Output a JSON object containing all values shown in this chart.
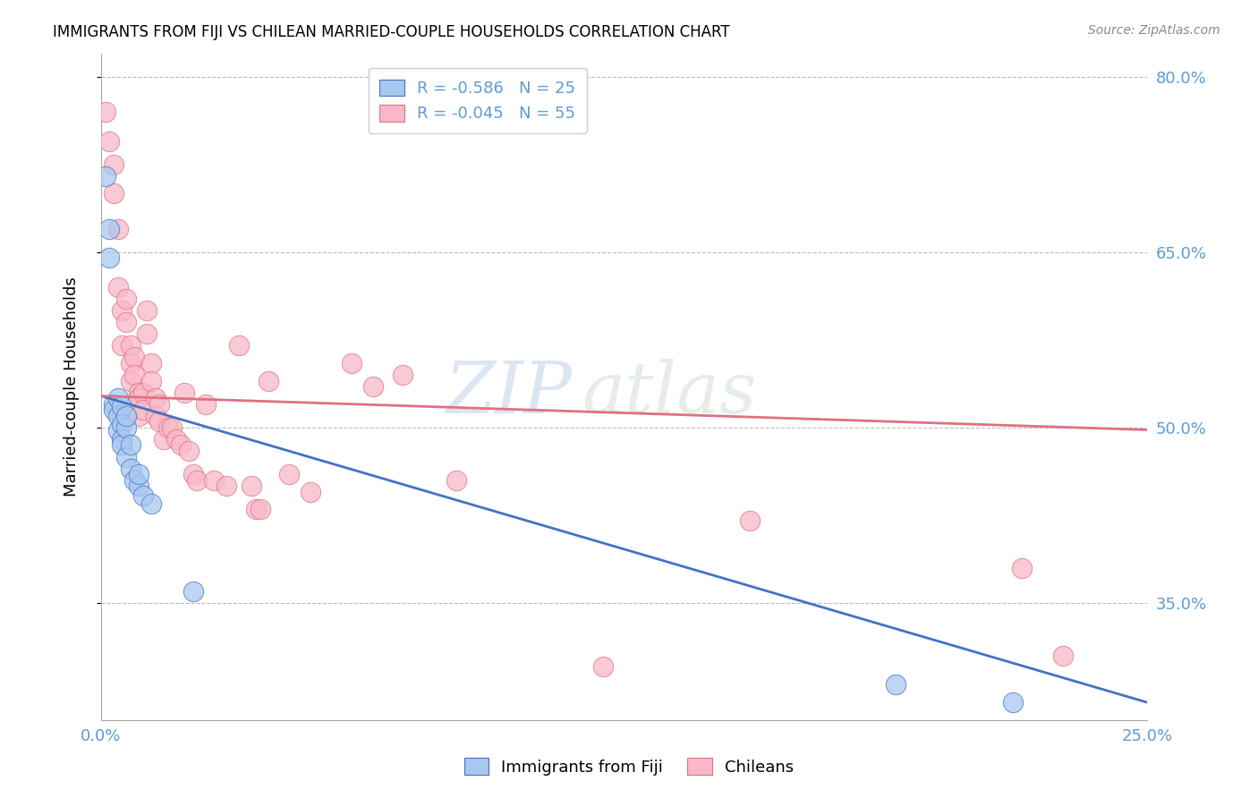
{
  "title": "IMMIGRANTS FROM FIJI VS CHILEAN MARRIED-COUPLE HOUSEHOLDS CORRELATION CHART",
  "source": "Source: ZipAtlas.com",
  "ylabel": "Married-couple Households",
  "xlim": [
    0.0,
    0.25
  ],
  "ylim": [
    0.25,
    0.82
  ],
  "yticks": [
    0.35,
    0.5,
    0.65,
    0.8
  ],
  "ytick_labels": [
    "35.0%",
    "50.0%",
    "65.0%",
    "80.0%"
  ],
  "xticks": [
    0.0,
    0.05,
    0.1,
    0.15,
    0.2,
    0.25
  ],
  "xtick_labels": [
    "0.0%",
    "",
    "",
    "",
    "",
    "25.0%"
  ],
  "fiji_R": "-0.586",
  "fiji_N": "25",
  "chilean_R": "-0.045",
  "chilean_N": "55",
  "fiji_color": "#A8C8F0",
  "chilean_color": "#F8B8C8",
  "fiji_line_color": "#4472C4",
  "chilean_line_color": "#E07080",
  "fiji_scatter": [
    [
      0.001,
      0.715
    ],
    [
      0.002,
      0.67
    ],
    [
      0.002,
      0.645
    ],
    [
      0.003,
      0.52
    ],
    [
      0.003,
      0.515
    ],
    [
      0.004,
      0.525
    ],
    [
      0.004,
      0.51
    ],
    [
      0.004,
      0.498
    ],
    [
      0.005,
      0.518
    ],
    [
      0.005,
      0.503
    ],
    [
      0.005,
      0.49
    ],
    [
      0.005,
      0.485
    ],
    [
      0.006,
      0.5
    ],
    [
      0.006,
      0.51
    ],
    [
      0.006,
      0.475
    ],
    [
      0.007,
      0.465
    ],
    [
      0.007,
      0.485
    ],
    [
      0.008,
      0.455
    ],
    [
      0.009,
      0.45
    ],
    [
      0.009,
      0.46
    ],
    [
      0.01,
      0.442
    ],
    [
      0.012,
      0.435
    ],
    [
      0.022,
      0.36
    ],
    [
      0.19,
      0.28
    ],
    [
      0.218,
      0.265
    ]
  ],
  "chilean_scatter": [
    [
      0.001,
      0.77
    ],
    [
      0.002,
      0.745
    ],
    [
      0.003,
      0.725
    ],
    [
      0.003,
      0.7
    ],
    [
      0.004,
      0.67
    ],
    [
      0.004,
      0.62
    ],
    [
      0.005,
      0.6
    ],
    [
      0.005,
      0.57
    ],
    [
      0.006,
      0.61
    ],
    [
      0.006,
      0.59
    ],
    [
      0.007,
      0.57
    ],
    [
      0.007,
      0.555
    ],
    [
      0.007,
      0.54
    ],
    [
      0.008,
      0.56
    ],
    [
      0.008,
      0.545
    ],
    [
      0.009,
      0.53
    ],
    [
      0.009,
      0.525
    ],
    [
      0.009,
      0.51
    ],
    [
      0.01,
      0.53
    ],
    [
      0.01,
      0.515
    ],
    [
      0.011,
      0.6
    ],
    [
      0.011,
      0.58
    ],
    [
      0.012,
      0.555
    ],
    [
      0.012,
      0.54
    ],
    [
      0.013,
      0.525
    ],
    [
      0.013,
      0.51
    ],
    [
      0.014,
      0.52
    ],
    [
      0.014,
      0.505
    ],
    [
      0.015,
      0.49
    ],
    [
      0.016,
      0.5
    ],
    [
      0.017,
      0.5
    ],
    [
      0.018,
      0.49
    ],
    [
      0.019,
      0.485
    ],
    [
      0.02,
      0.53
    ],
    [
      0.021,
      0.48
    ],
    [
      0.022,
      0.46
    ],
    [
      0.023,
      0.455
    ],
    [
      0.025,
      0.52
    ],
    [
      0.027,
      0.455
    ],
    [
      0.03,
      0.45
    ],
    [
      0.033,
      0.57
    ],
    [
      0.036,
      0.45
    ],
    [
      0.037,
      0.43
    ],
    [
      0.038,
      0.43
    ],
    [
      0.04,
      0.54
    ],
    [
      0.045,
      0.46
    ],
    [
      0.05,
      0.445
    ],
    [
      0.06,
      0.555
    ],
    [
      0.065,
      0.535
    ],
    [
      0.072,
      0.545
    ],
    [
      0.085,
      0.455
    ],
    [
      0.12,
      0.296
    ],
    [
      0.155,
      0.42
    ],
    [
      0.22,
      0.38
    ],
    [
      0.23,
      0.305
    ]
  ],
  "watermark_text": "ZIP",
  "watermark_text2": "atlas",
  "background_color": "#FFFFFF",
  "grid_color": "#BBBBBB"
}
